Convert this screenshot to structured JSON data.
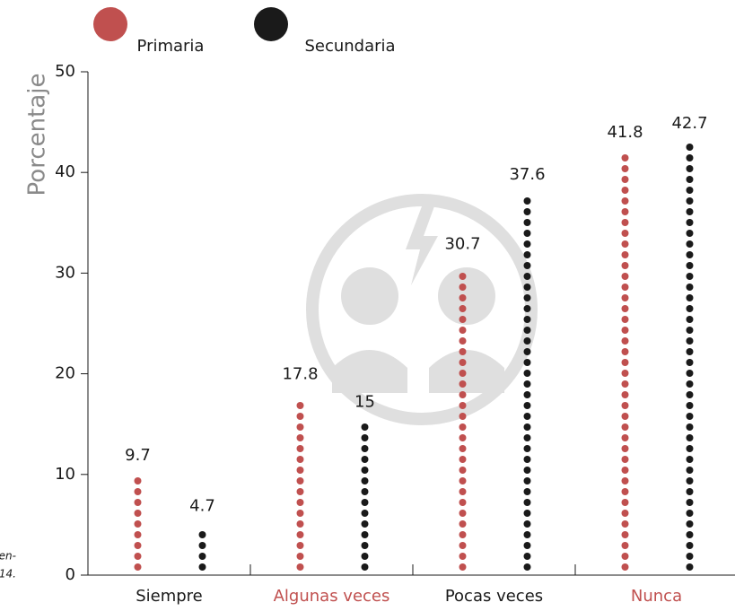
{
  "chart_data": {
    "type": "dot-column",
    "y_label": "Porcentaje",
    "categories": [
      "Siempre",
      "Algunas veces",
      "Pocas veces",
      "Nunca"
    ],
    "category_label_colors": [
      "#1a1a1a",
      "#c0504f",
      "#1a1a1a",
      "#c0504f"
    ],
    "series": [
      {
        "name": "Primaria",
        "color": "#c0504f",
        "values": [
          9.7,
          17.8,
          30.7,
          41.8
        ]
      },
      {
        "name": "Secundaria",
        "color": "#1a1a1a",
        "values": [
          4.7,
          15,
          37.6,
          42.7
        ]
      }
    ],
    "ylim": [
      0,
      50
    ],
    "yticks": [
      0,
      10,
      20,
      30,
      40,
      50
    ],
    "grid": false,
    "legend": "top",
    "note_fragments": [
      "en-",
      "14."
    ]
  }
}
